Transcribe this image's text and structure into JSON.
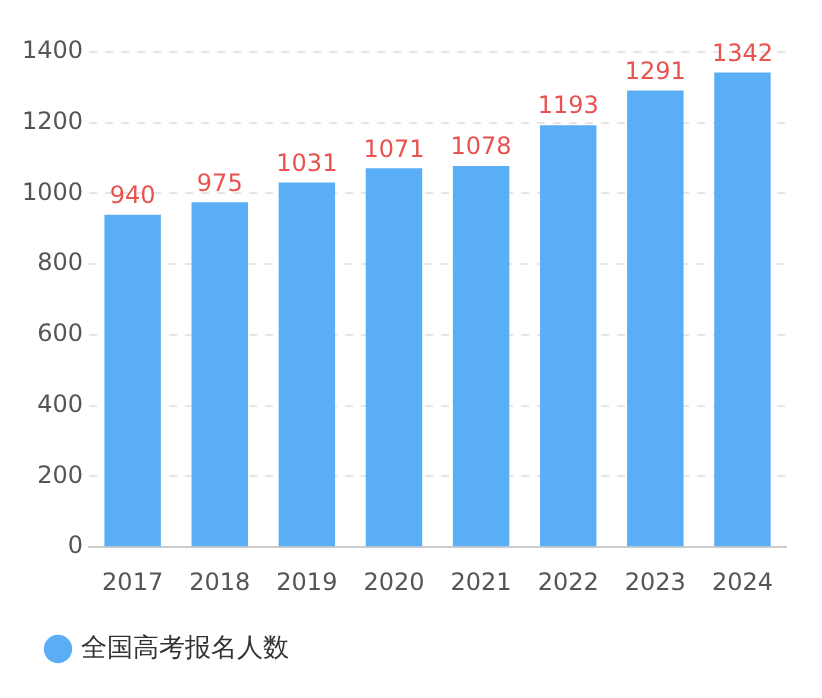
{
  "chart_data": {
    "type": "bar",
    "categories": [
      "2017",
      "2018",
      "2019",
      "2020",
      "2021",
      "2022",
      "2023",
      "2024"
    ],
    "series": [
      {
        "name": "全国高考报名人数",
        "color": "#5aaef5",
        "values": [
          940,
          975,
          1031,
          1071,
          1078,
          1193,
          1291,
          1342
        ]
      }
    ],
    "ylim": [
      0,
      1400
    ],
    "yticks": [
      0,
      200,
      400,
      600,
      800,
      1000,
      1200,
      1400
    ],
    "grid": "y",
    "legend": "bottom left",
    "data_labels": true
  }
}
